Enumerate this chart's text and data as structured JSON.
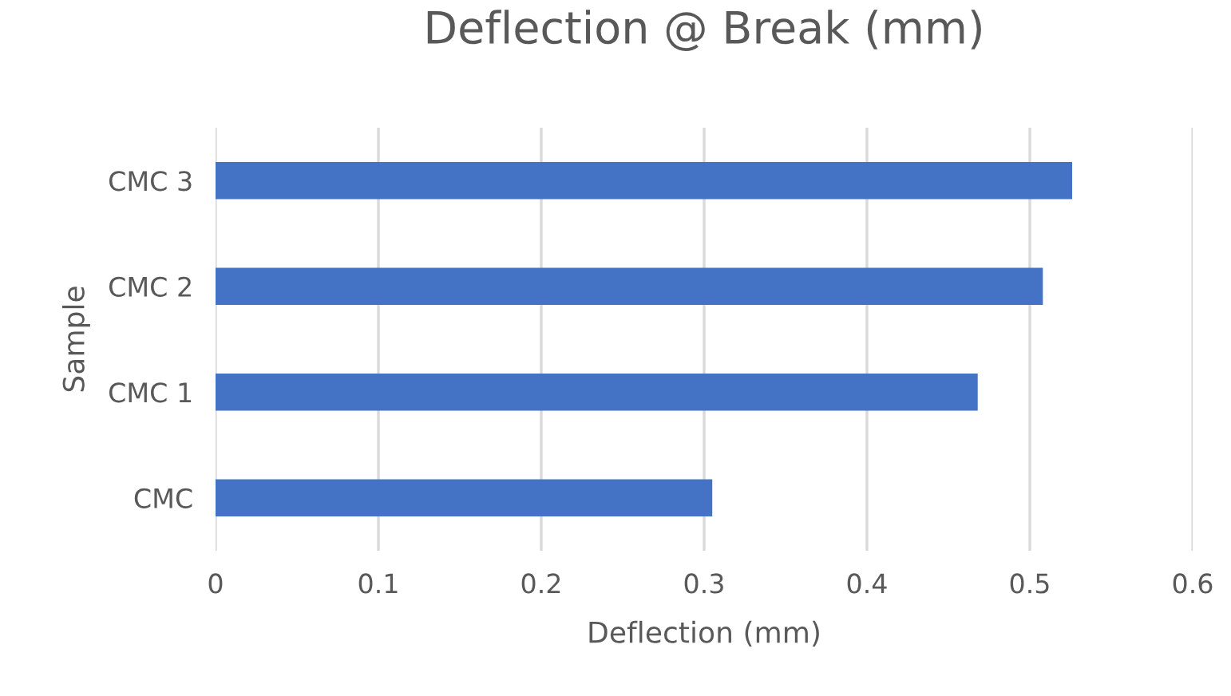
{
  "chart_data": {
    "type": "bar",
    "orientation": "horizontal",
    "title": "Deflection @ Break (mm)",
    "xlabel": "Deflection (mm)",
    "ylabel": "Sample",
    "categories": [
      "CMC 3",
      "CMC 2",
      "CMC 1",
      "CMC"
    ],
    "values": [
      0.526,
      0.508,
      0.468,
      0.305
    ],
    "color": "#4472c4",
    "xlim": [
      0,
      0.6
    ],
    "xticks": [
      0,
      0.1,
      0.2,
      0.3,
      0.4,
      0.5,
      0.6
    ],
    "grid": "x"
  }
}
